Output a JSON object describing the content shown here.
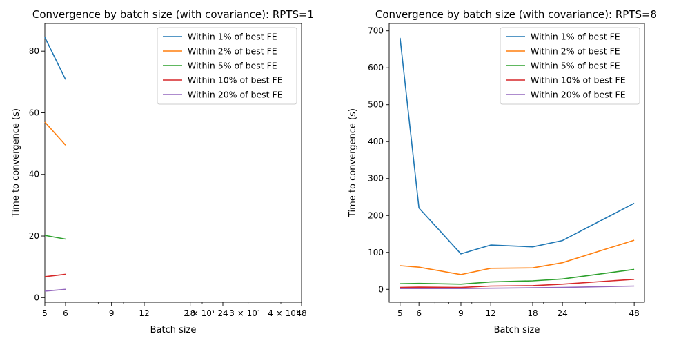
{
  "chart_data": [
    {
      "type": "line",
      "title": "Convergence by batch size (with covariance): RPTS=1",
      "xlabel": "Batch size",
      "ylabel": "Time to convergence (s)",
      "xscale": "log",
      "xlim": [
        5,
        48
      ],
      "ylim": [
        -1.5,
        89
      ],
      "x_ticks": [
        "5",
        "6",
        "9",
        "12",
        "18",
        "24",
        "48"
      ],
      "x_ticks_overlap": [
        "2 × 10¹",
        "3 × 10¹",
        "4 × 10¹"
      ],
      "y_ticks": [
        "0",
        "20",
        "40",
        "60",
        "80"
      ],
      "grid": false,
      "legend_position": "top-right",
      "series": [
        {
          "name": "Within 1% of best FE",
          "color": "#1f77b4",
          "x": [
            5,
            6
          ],
          "y": [
            84.5,
            70.8
          ]
        },
        {
          "name": "Within 2% of best FE",
          "color": "#ff7f0e",
          "x": [
            5,
            6
          ],
          "y": [
            57.0,
            49.5
          ]
        },
        {
          "name": "Within 5% of best FE",
          "color": "#2ca02c",
          "x": [
            5,
            6
          ],
          "y": [
            20.2,
            19.0
          ]
        },
        {
          "name": "Within 10% of best FE",
          "color": "#d62728",
          "x": [
            5,
            6
          ],
          "y": [
            6.8,
            7.6
          ]
        },
        {
          "name": "Within 20% of best FE",
          "color": "#9467bd",
          "x": [
            5,
            6
          ],
          "y": [
            2.1,
            2.7
          ]
        }
      ]
    },
    {
      "type": "line",
      "title": "Convergence by batch size (with covariance): RPTS=8",
      "xlabel": "Batch size",
      "ylabel": "Time to convergence (s)",
      "xscale": "log",
      "xlim": [
        4.5,
        53
      ],
      "ylim": [
        -35,
        720
      ],
      "x_ticks": [
        "5",
        "6",
        "9",
        "12",
        "18",
        "24",
        "48"
      ],
      "y_ticks": [
        "0",
        "100",
        "200",
        "300",
        "400",
        "500",
        "600",
        "700"
      ],
      "grid": false,
      "legend_position": "top-right",
      "series": [
        {
          "name": "Within 1% of best FE",
          "color": "#1f77b4",
          "x": [
            5,
            6,
            9,
            12,
            18,
            24,
            48
          ],
          "y": [
            681,
            220,
            96,
            120,
            115,
            132,
            233
          ]
        },
        {
          "name": "Within 2% of best FE",
          "color": "#ff7f0e",
          "x": [
            5,
            6,
            9,
            12,
            18,
            24,
            48
          ],
          "y": [
            64,
            60,
            40,
            57,
            58,
            72,
            133
          ]
        },
        {
          "name": "Within 5% of best FE",
          "color": "#2ca02c",
          "x": [
            5,
            6,
            9,
            12,
            18,
            24,
            48
          ],
          "y": [
            15,
            16,
            14,
            20,
            23,
            28,
            54
          ]
        },
        {
          "name": "Within 10% of best FE",
          "color": "#d62728",
          "x": [
            5,
            6,
            9,
            12,
            18,
            24,
            48
          ],
          "y": [
            5,
            6,
            5,
            9,
            10,
            14,
            27
          ]
        },
        {
          "name": "Within 20% of best FE",
          "color": "#9467bd",
          "x": [
            5,
            6,
            9,
            12,
            18,
            24,
            48
          ],
          "y": [
            2,
            2,
            2,
            3,
            4,
            5,
            9
          ]
        }
      ]
    }
  ]
}
